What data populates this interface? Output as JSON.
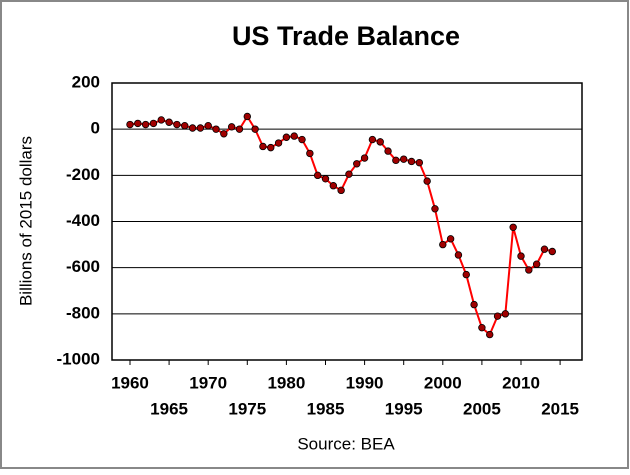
{
  "chart_data": {
    "type": "line",
    "title": "US Trade Balance",
    "y_label": "Billions of 2015 dollars",
    "source": "Source: BEA",
    "x": [
      1960,
      1961,
      1962,
      1963,
      1964,
      1965,
      1966,
      1967,
      1968,
      1969,
      1970,
      1971,
      1972,
      1973,
      1974,
      1975,
      1976,
      1977,
      1978,
      1979,
      1980,
      1981,
      1982,
      1983,
      1984,
      1985,
      1986,
      1987,
      1988,
      1989,
      1990,
      1991,
      1992,
      1993,
      1994,
      1995,
      1996,
      1997,
      1998,
      1999,
      2000,
      2001,
      2002,
      2003,
      2004,
      2005,
      2006,
      2007,
      2008,
      2009,
      2010,
      2011,
      2012,
      2013,
      2014
    ],
    "series": [
      {
        "color": "#ff0000",
        "marker_color": "#a00000",
        "values": [
          20,
          25,
          20,
          25,
          40,
          30,
          20,
          15,
          5,
          5,
          15,
          0,
          -20,
          10,
          0,
          55,
          0,
          -75,
          -80,
          -60,
          -35,
          -30,
          -45,
          -105,
          -200,
          -215,
          -245,
          -265,
          -195,
          -150,
          -125,
          -45,
          -55,
          -95,
          -135,
          -130,
          -140,
          -145,
          -225,
          -345,
          -500,
          -475,
          -545,
          -630,
          -760,
          -860,
          -890,
          -810,
          -800,
          -425,
          -550,
          -610,
          -585,
          -520,
          -530
        ]
      }
    ],
    "xlim": [
      1957.7,
      2017.8
    ],
    "xticks": [
      1960,
      1965,
      1970,
      1975,
      1980,
      1985,
      1990,
      1995,
      2000,
      2005,
      2010,
      2015
    ],
    "ylim": [
      -1000,
      200
    ],
    "yticks": [
      -1000,
      -800,
      -600,
      -400,
      -200,
      0,
      200
    ],
    "grid": true
  }
}
